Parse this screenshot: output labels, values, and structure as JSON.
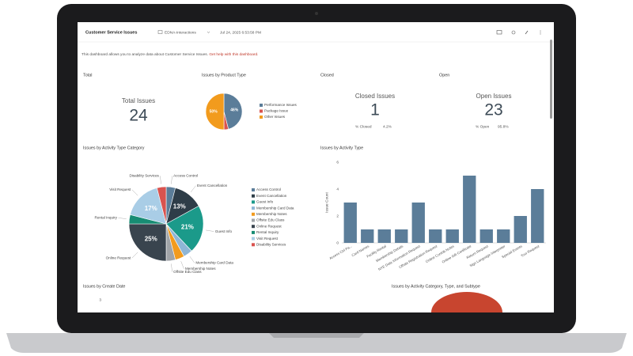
{
  "header": {
    "title": "Customer Service Issues",
    "source": "EDNA-Interactions",
    "timestamp": "Jul 24, 2025 6:53:58 PM"
  },
  "description": {
    "text": "This dashboard allows you to analyze data about Customer Service Issues.",
    "link": "Get help with this dashboard."
  },
  "total": {
    "title": "Total",
    "label": "Total Issues",
    "value": 24
  },
  "closed": {
    "title": "Closed",
    "label": "Closed Issues",
    "value": 1,
    "pct_label": "% Closed",
    "pct": "4.2%"
  },
  "open": {
    "title": "Open",
    "label": "Open Issues",
    "value": 23,
    "pct_label": "% Open",
    "pct": "95.8%"
  },
  "product_chart": {
    "type": "pie",
    "title": "Issues by Product Type",
    "categories": [
      "Performance Issues",
      "Package Issue",
      "Other Issues"
    ],
    "values": [
      46,
      4,
      50
    ],
    "value_labels": [
      "46%",
      null,
      "50%"
    ],
    "colors": [
      "#5b7d99",
      "#d9534f",
      "#f29b1d"
    ]
  },
  "category_chart": {
    "type": "pie",
    "title": "Issues by Activity Type Category",
    "categories": [
      "Access Control",
      "Event Cancellation",
      "Guest Info",
      "Membership Card Data",
      "Membership Notes",
      "Offsite Edu Class",
      "Online Request",
      "Rental Inquiry",
      "Visit Request",
      "Disability Services"
    ],
    "values": [
      4,
      13,
      21,
      4,
      4,
      4,
      25,
      4,
      17,
      4
    ],
    "value_labels": [
      null,
      "13%",
      "21%",
      null,
      null,
      null,
      "25%",
      null,
      "17%",
      null
    ],
    "colors": [
      "#5b7d99",
      "#2e3d48",
      "#1b9a8a",
      "#8fb6d6",
      "#f29b1d",
      "#a0a4a8",
      "#39444e",
      "#178c73",
      "#a9cde6",
      "#d9534f"
    ]
  },
  "activity_chart": {
    "type": "bar",
    "title": "Issues by Activity Type",
    "y_label": "Issue Count",
    "categories": [
      "Access Ctrl Pa...",
      "Card Names",
      "Facility Rental",
      "Membership Details",
      "NYE Data Information Request",
      "Offsite Registration Request",
      "Online Contrib Notes",
      "Online Gift Certificate",
      "Return Request",
      "Sign Language Interpreter",
      "Special Events",
      "Tour Request"
    ],
    "values": [
      3,
      1,
      1,
      1,
      3,
      1,
      1,
      5,
      1,
      1,
      2,
      4
    ],
    "color": "#5b7d99",
    "ylim": [
      0,
      6
    ],
    "yticks": [
      0,
      2,
      4,
      6
    ]
  },
  "create_date": {
    "title": "Issues by Create Date",
    "yticks": [
      3
    ]
  },
  "subtype": {
    "title": "Issues by Activity Category, Type, and Subtype"
  }
}
